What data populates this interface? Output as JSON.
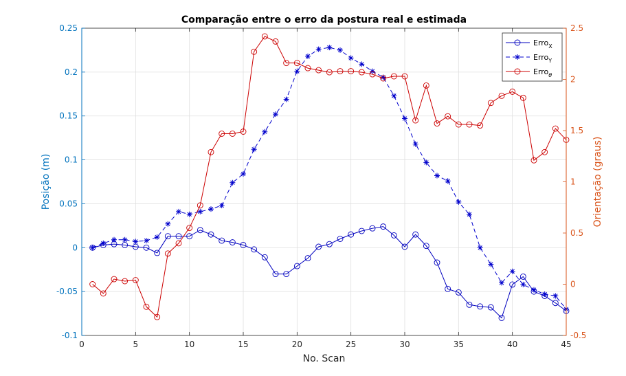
{
  "chart_data": {
    "type": "line",
    "title": "Comparação entre o erro da postura real e estimada",
    "xlabel": "No. Scan",
    "ylabel_left": "Posição (m)",
    "ylabel_right": "Orientação (graus)",
    "xlim": [
      0,
      45
    ],
    "ylim_left": [
      -0.1,
      0.25
    ],
    "ylim_right": [
      -0.5,
      2.5
    ],
    "xticks": [
      "0",
      "5",
      "10",
      "15",
      "20",
      "25",
      "30",
      "35",
      "40",
      "45"
    ],
    "yticks_left": [
      "-0.1",
      "-0.05",
      "0",
      "0.05",
      "0.1",
      "0.15",
      "0.2",
      "0.25"
    ],
    "yticks_right": [
      "-0.5",
      "0",
      "0.5",
      "1",
      "1.5",
      "2",
      "2.5"
    ],
    "grid": true,
    "legend_position": "top-right",
    "colors": {
      "erro_x": "#0000bf",
      "erro_y": "#0000cc",
      "erro_theta": "#cc0000",
      "left_axis": "#0072bd",
      "right_axis": "#d95319"
    },
    "x": [
      1,
      2,
      3,
      4,
      5,
      6,
      7,
      8,
      9,
      10,
      11,
      12,
      13,
      14,
      15,
      16,
      17,
      18,
      19,
      20,
      21,
      22,
      23,
      24,
      25,
      26,
      27,
      28,
      29,
      30,
      31,
      32,
      33,
      34,
      35,
      36,
      37,
      38,
      39,
      40,
      41,
      42,
      43,
      44,
      45
    ],
    "series": [
      {
        "name": "Erro",
        "subscript": "X",
        "axis": "left",
        "marker": "circle",
        "linestyle": "solid",
        "values": [
          0.0,
          0.003,
          0.004,
          0.003,
          0.001,
          0.0,
          -0.006,
          0.013,
          0.013,
          0.013,
          0.02,
          0.015,
          0.008,
          0.006,
          0.003,
          -0.002,
          -0.011,
          -0.03,
          -0.03,
          -0.021,
          -0.012,
          0.001,
          0.004,
          0.01,
          0.015,
          0.019,
          0.022,
          0.024,
          0.014,
          0.001,
          0.015,
          0.002,
          -0.017,
          -0.047,
          -0.051,
          -0.065,
          -0.067,
          -0.068,
          -0.08,
          -0.042,
          -0.033,
          -0.05,
          -0.055,
          -0.063,
          -0.072
        ]
      },
      {
        "name": "Erro",
        "subscript": "Y",
        "axis": "left",
        "marker": "star",
        "linestyle": "dashed",
        "values": [
          0.0,
          0.005,
          0.009,
          0.009,
          0.007,
          0.008,
          0.012,
          0.027,
          0.041,
          0.038,
          0.041,
          0.044,
          0.048,
          0.074,
          0.084,
          0.112,
          0.132,
          0.152,
          0.169,
          0.201,
          0.218,
          0.226,
          0.228,
          0.225,
          0.216,
          0.209,
          0.201,
          0.194,
          0.173,
          0.147,
          0.118,
          0.097,
          0.082,
          0.076,
          0.052,
          0.038,
          0.0,
          -0.019,
          -0.04,
          -0.027,
          -0.042,
          -0.048,
          -0.053,
          -0.055,
          -0.07
        ]
      },
      {
        "name": "Erro",
        "subscript": "θ",
        "axis": "right",
        "marker": "circle",
        "linestyle": "solid",
        "values": [
          0.0,
          -0.09,
          0.05,
          0.03,
          0.04,
          -0.22,
          -0.32,
          0.3,
          0.4,
          0.55,
          0.77,
          1.29,
          1.47,
          1.47,
          1.49,
          2.27,
          2.42,
          2.37,
          2.16,
          2.16,
          2.11,
          2.09,
          2.07,
          2.08,
          2.08,
          2.07,
          2.05,
          2.01,
          2.03,
          2.03,
          1.6,
          1.94,
          1.57,
          1.64,
          1.56,
          1.56,
          1.55,
          1.77,
          1.84,
          1.88,
          1.82,
          1.21,
          1.29,
          1.52,
          1.41
        ]
      }
    ]
  }
}
